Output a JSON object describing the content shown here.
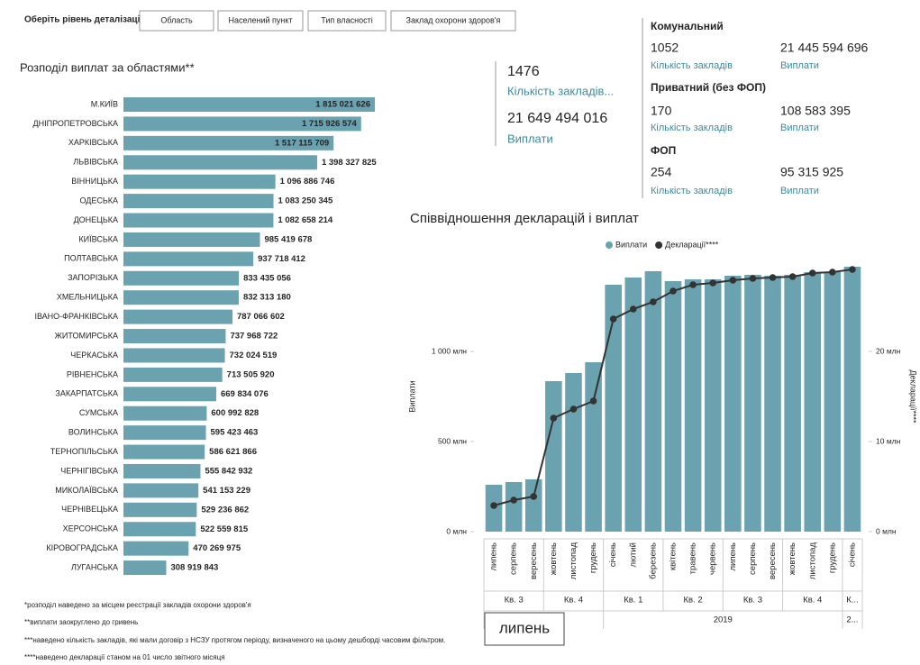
{
  "filters": {
    "label": "Оберіть рівень деталізації:",
    "options": [
      "Область",
      "Населений пункт",
      "Тип власності",
      "Заклад охорони здоров'я"
    ]
  },
  "summary": {
    "count": "1476",
    "count_label": "Кількість закладів...",
    "payments": "21 649 494 016",
    "payments_label": "Виплати"
  },
  "ownership": [
    {
      "name": "Комунальний",
      "count": "1052",
      "count_label": "Кількість закладів",
      "payments": "21 445 594 696",
      "payments_label": "Виплати"
    },
    {
      "name": "Приватний (без ФОП)",
      "count": "170",
      "count_label": "Кількість закладів",
      "payments": "108 583 395",
      "payments_label": "Виплати"
    },
    {
      "name": "ФОП",
      "count": "254",
      "count_label": "Кількість закладів",
      "payments": "95 315 925",
      "payments_label": "Виплати"
    }
  ],
  "footnotes": [
    "*розподіл наведено за місцем реєстрації закладів охорони здоров'я",
    "**виплати заокруглено до гривень",
    "***наведено кількість закладів, які мали договір з НСЗУ протягом періоду, визначеного на цьому дешборді часовим фільтром.",
    "****наведено декларації станом на 01 число звітного місяця"
  ],
  "tooltip": "липень",
  "chart_data": [
    {
      "type": "hbar",
      "title": "Розподіл виплат за областями**",
      "color": "#6aa2b0",
      "categories": [
        "М.КИЇВ",
        "ДНІПРОПЕТРОВСЬКА",
        "ХАРКІВСЬКА",
        "ЛЬВІВСЬКА",
        "ВІННИЦЬКА",
        "ОДЕСЬКА",
        "ДОНЕЦЬКА",
        "КИЇВСЬКА",
        "ПОЛТАВСЬКА",
        "ЗАПОРІЗЬКА",
        "ХМЕЛЬНИЦЬКА",
        "ІВАНО-ФРАНКІВСЬКА",
        "ЖИТОМИРСЬКА",
        "ЧЕРКАСЬКА",
        "РІВНЕНСЬКА",
        "ЗАКАРПАТСЬКА",
        "СУМСЬКА",
        "ВОЛИНСЬКА",
        "ТЕРНОПІЛЬСЬКА",
        "ЧЕРНІГІВСЬКА",
        "МИКОЛАЇВСЬКА",
        "ЧЕРНІВЕЦЬКА",
        "ХЕРСОНСЬКА",
        "КІРОВОГРАДСЬКА",
        "ЛУГАНСЬКА"
      ],
      "values": [
        1815021626,
        1715926574,
        1517115709,
        1398327825,
        1096886746,
        1083250345,
        1082658214,
        985419678,
        937718412,
        833435056,
        832313180,
        787066602,
        737968722,
        732024519,
        713505920,
        669834076,
        600992828,
        595423463,
        586621866,
        555842932,
        541153229,
        529236862,
        522559815,
        470269975,
        308919843
      ],
      "value_labels": [
        "1 815 021 626",
        "1 715 926 574",
        "1 517 115 709",
        "1 398 327 825",
        "1 096 886 746",
        "1 083 250 345",
        "1 082 658 214",
        "985 419 678",
        "937 718 412",
        "833 435 056",
        "832 313 180",
        "787 066 602",
        "737 968 722",
        "732 024 519",
        "713 505 920",
        "669 834 076",
        "600 992 828",
        "595 423 463",
        "586 621 866",
        "555 842 932",
        "541 153 229",
        "529 236 862",
        "522 559 815",
        "470 269 975",
        "308 919 843"
      ]
    },
    {
      "type": "combo",
      "title": "Співвідношення декларацій і виплат",
      "ylabel": "Виплати",
      "y2label": "Декларації****",
      "legend": "top",
      "categories": [
        "липень",
        "серпень",
        "вересень",
        "жовтень",
        "листопад",
        "грудень",
        "січень",
        "лютий",
        "березень",
        "квітень",
        "травень",
        "червень",
        "липень",
        "серпень",
        "вересень",
        "жовтень",
        "листопад",
        "грудень",
        "січень"
      ],
      "quarters": [
        "Кв. 3",
        "Кв. 3",
        "Кв. 3",
        "Кв. 4",
        "Кв. 4",
        "Кв. 4",
        "Кв. 1",
        "Кв. 1",
        "Кв. 1",
        "Кв. 2",
        "Кв. 2",
        "Кв. 2",
        "Кв. 3",
        "Кв. 3",
        "Кв. 3",
        "Кв. 4",
        "Кв. 4",
        "Кв. 4",
        "К..."
      ],
      "years": [
        null,
        null,
        null,
        null,
        null,
        null,
        "2019",
        "2019",
        "2019",
        "2019",
        "2019",
        "2019",
        "2019",
        "2019",
        "2019",
        "2019",
        "2019",
        "2019",
        "2..."
      ],
      "series": [
        {
          "name": "Виплати",
          "type": "bar",
          "color": "#6aa2b0",
          "values": [
            260,
            275,
            290,
            835,
            880,
            940,
            1370,
            1410,
            1445,
            1390,
            1400,
            1400,
            1420,
            1425,
            1420,
            1425,
            1440,
            1440,
            1470
          ]
        },
        {
          "name": "Декларації****",
          "type": "line",
          "axis": "y2",
          "color": "#333333",
          "values": [
            2.9,
            3.5,
            3.9,
            12.6,
            13.6,
            14.5,
            23.6,
            24.7,
            25.5,
            26.7,
            27.4,
            27.6,
            27.9,
            28.1,
            28.2,
            28.3,
            28.7,
            28.8,
            29.1
          ]
        }
      ],
      "ylim": [
        0,
        1500
      ],
      "yticks": [
        {
          "value": 0,
          "label": "0 млн"
        },
        {
          "value": 500,
          "label": "500 млн"
        },
        {
          "value": 1000,
          "label": "1 000 млн"
        }
      ],
      "y2lim": [
        0,
        30
      ],
      "y2ticks": [
        {
          "value": 0,
          "label": "0 млн"
        },
        {
          "value": 10,
          "label": "10 млн"
        },
        {
          "value": 20,
          "label": "20 млн"
        }
      ]
    }
  ]
}
